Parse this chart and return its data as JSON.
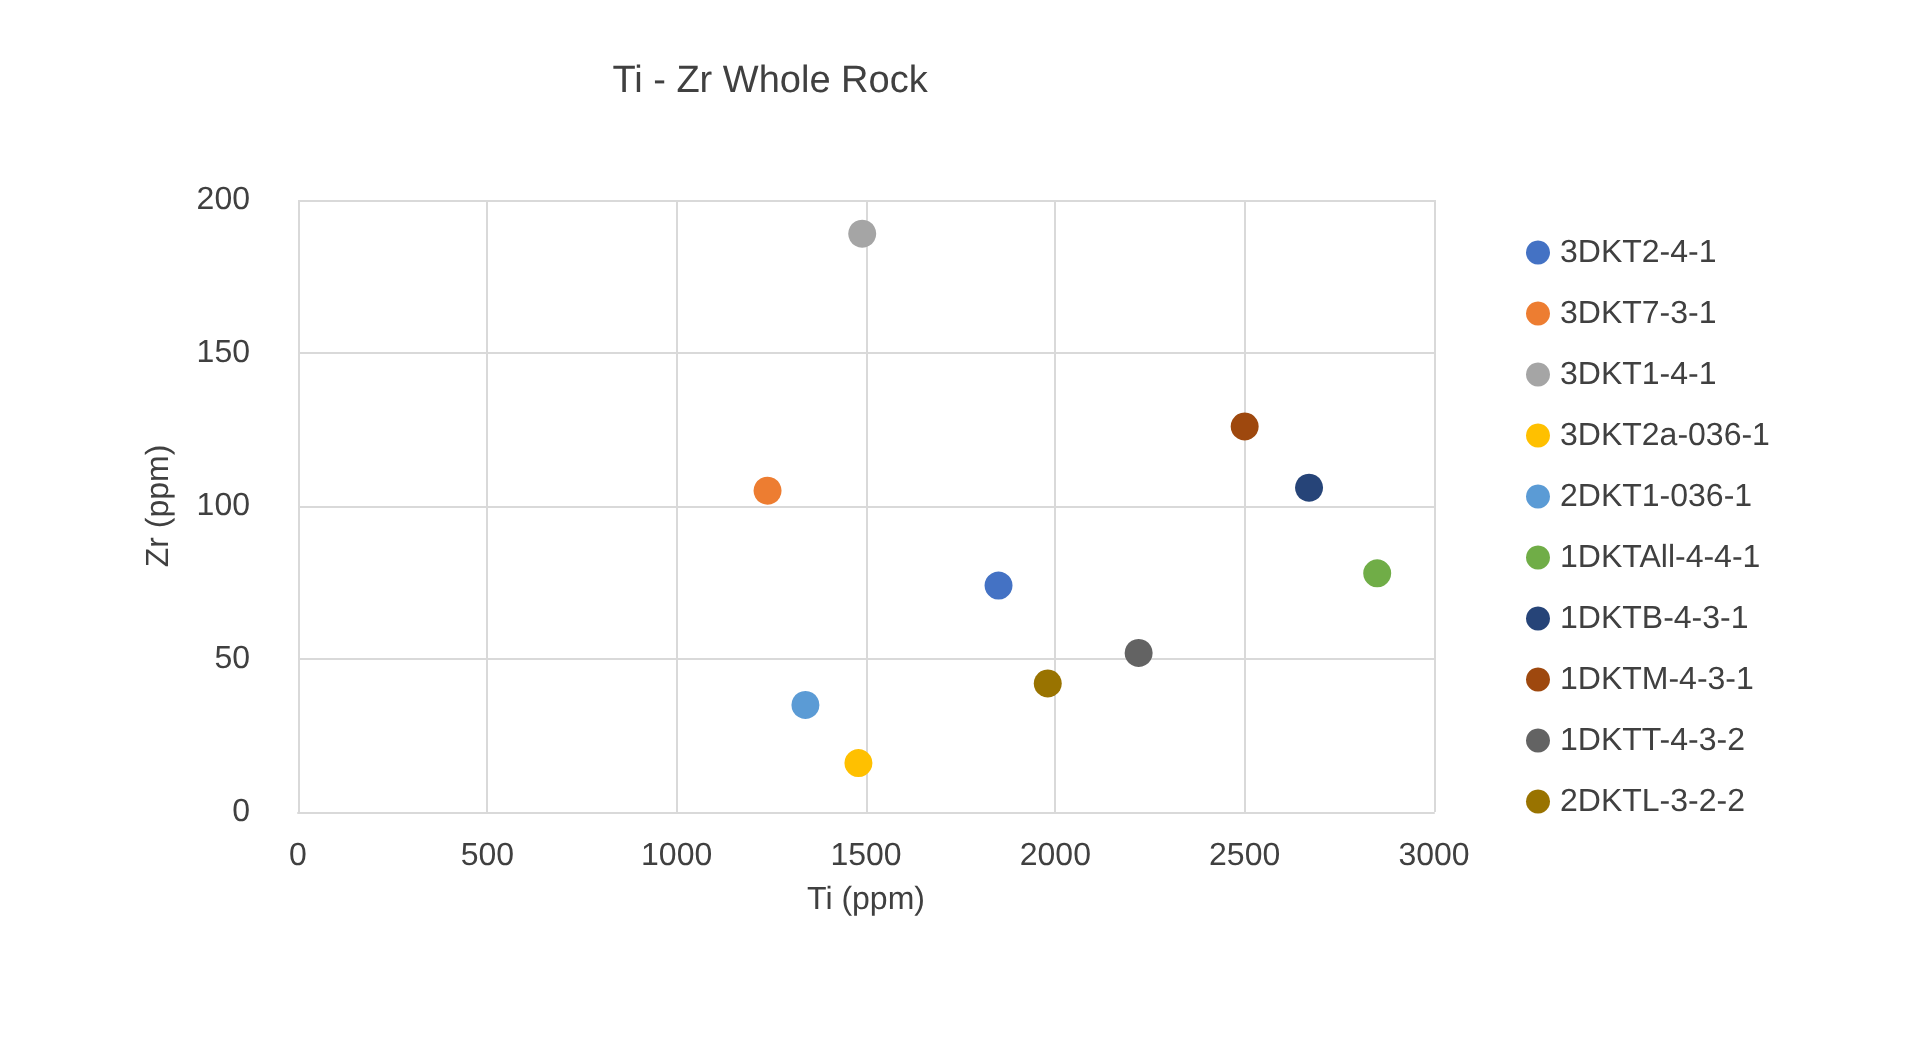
{
  "chart_data": {
    "type": "scatter",
    "title": "Ti - Zr Whole Rock",
    "xlabel": "Ti (ppm)",
    "ylabel": "Zr (ppm)",
    "xlim": [
      0,
      3000
    ],
    "xticks": [
      0,
      500,
      1000,
      1500,
      2000,
      2500,
      3000
    ],
    "ylim": [
      0,
      200
    ],
    "yticks": [
      0,
      50,
      100,
      150,
      200
    ],
    "grid": true,
    "legend": "right",
    "marker": "circle",
    "series": [
      {
        "name": "3DKT2-4-1",
        "color": "#4472c4",
        "x": [
          1850
        ],
        "values": [
          74
        ]
      },
      {
        "name": "3DKT7-3-1",
        "color": "#ed7d31",
        "x": [
          1240
        ],
        "values": [
          105
        ]
      },
      {
        "name": "3DKT1-4-1",
        "color": "#a5a5a5",
        "x": [
          1490
        ],
        "values": [
          189
        ]
      },
      {
        "name": "3DKT2a-036-1",
        "color": "#ffc000",
        "x": [
          1480
        ],
        "values": [
          16
        ]
      },
      {
        "name": "2DKT1-036-1",
        "color": "#5b9bd5",
        "x": [
          1340
        ],
        "values": [
          35
        ]
      },
      {
        "name": "1DKTAll-4-4-1",
        "color": "#70ad47",
        "x": [
          2850
        ],
        "values": [
          78
        ]
      },
      {
        "name": "1DKTB-4-3-1",
        "color": "#264478",
        "x": [
          2670
        ],
        "values": [
          106
        ]
      },
      {
        "name": "1DKTM-4-3-1",
        "color": "#9e480e",
        "x": [
          2500
        ],
        "values": [
          126
        ]
      },
      {
        "name": "1DKTT-4-3-2",
        "color": "#636363",
        "x": [
          2220
        ],
        "values": [
          52
        ]
      },
      {
        "name": "2DKTL-3-2-2",
        "color": "#997300",
        "x": [
          1980
        ],
        "values": [
          42
        ]
      }
    ]
  }
}
